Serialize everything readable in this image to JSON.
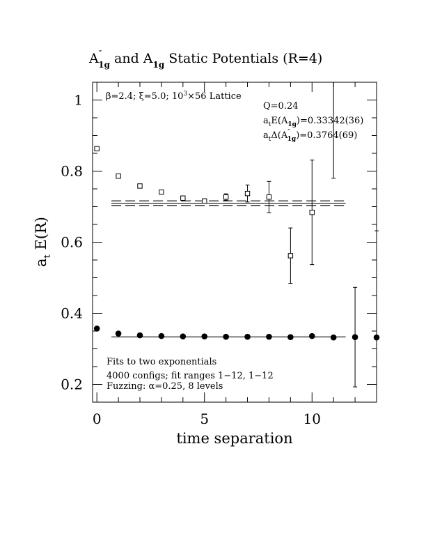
{
  "chart_data": {
    "type": "scatter",
    "title": {
      "part1": "A",
      "part1_sup": "″",
      "part1_sub": "1g",
      "and": " and ",
      "part2": "A",
      "part2_sub": "1g",
      "rest": " Static Potentials (R=4)"
    },
    "xlabel": "time separation",
    "ylabel": {
      "main": "a",
      "sub": "t",
      "rest": " E(R)"
    },
    "xlim": [
      -0.2,
      13.0
    ],
    "ylim": [
      0.15,
      1.05
    ],
    "xticks": [
      "0",
      "5",
      "10"
    ],
    "xtick_values": [
      0,
      5,
      10
    ],
    "yticks": [
      "0.2",
      "0.4",
      "0.6",
      "0.8",
      "1"
    ],
    "ytick_values": [
      0.2,
      0.4,
      0.6,
      0.8,
      1.0
    ],
    "annotation_topleft": {
      "beta": "β=2.4; ",
      "xi": "ξ=5.0; ",
      "lattice_pre": "10",
      "lattice_sup": "3",
      "lattice_post": "×56 Lattice"
    },
    "annotation_topright": {
      "q": "Q=0.24",
      "e1_pre": "a",
      "e1_sub": "t",
      "e1_mid": "E(A",
      "e1_sub2": "1g",
      "e1_post": ")=0.33342(36)",
      "e2_pre": "a",
      "e2_sub": "t",
      "e2_mid": "Δ(A",
      "e2_sup": "″",
      "e2_sub2": "1g",
      "e2_post": ")=0.3764(69)"
    },
    "annotation_bottom": [
      "Fits to two exponentials",
      "4000 configs; fit ranges 1−12, 1−12",
      "Fuzzing: α=0.25, 8 levels"
    ],
    "series": [
      {
        "marker": "open-square",
        "x": [
          0,
          1,
          2,
          3,
          4,
          5,
          6,
          7,
          8,
          9,
          10,
          11
        ],
        "y": [
          0.863,
          0.786,
          0.758,
          0.741,
          0.724,
          0.716,
          0.727,
          0.737,
          0.727,
          0.562,
          0.684,
          1.1
        ],
        "err": [
          0.002,
          0.002,
          0.002,
          0.003,
          0.004,
          0.006,
          0.009,
          0.024,
          0.044,
          0.078,
          0.147,
          0.32
        ]
      },
      {
        "marker": "filled-circle",
        "x": [
          0,
          1,
          2,
          3,
          4,
          5,
          6,
          7,
          8,
          9,
          10,
          11,
          12,
          13
        ],
        "y": [
          0.357,
          0.343,
          0.338,
          0.336,
          0.335,
          0.335,
          0.334,
          0.334,
          0.334,
          0.333,
          0.336,
          0.332,
          0.333,
          0.332
        ],
        "err": [
          0.001,
          0.001,
          0.001,
          0.001,
          0.001,
          0.001,
          0.001,
          0.001,
          0.002,
          0.002,
          0.003,
          0.004,
          0.14,
          0.3
        ]
      }
    ],
    "fit_lines": [
      {
        "y": 0.7098,
        "x_range": [
          1,
          11.5
        ]
      },
      {
        "y": 0.7033,
        "x_range": [
          1,
          11.5
        ],
        "dashed": true
      },
      {
        "y": 0.7163,
        "x_range": [
          1,
          11.5
        ],
        "dashed": true
      },
      {
        "y": 0.33342,
        "x_range": [
          1,
          11.5
        ]
      }
    ]
  }
}
